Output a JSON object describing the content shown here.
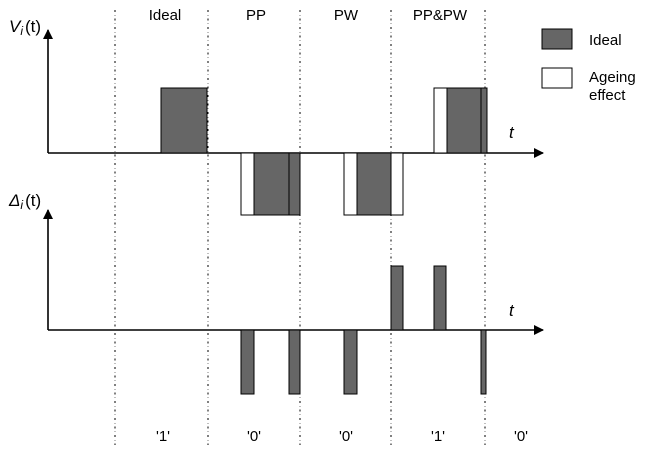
{
  "sections": [
    "Ideal",
    "PP",
    "PW",
    "PP&PW"
  ],
  "bits": [
    "'1'",
    "'0'",
    "'0'",
    "'1'",
    "'0'"
  ],
  "top_axis": {
    "symbol": "V",
    "subscript": "i",
    "arg": "(t)"
  },
  "bottom_axis": {
    "symbol": "Δ",
    "subscript": "i",
    "arg": "(t)"
  },
  "time_label": "t",
  "legend": {
    "ideal": {
      "label": "Ideal",
      "color": "#666666"
    },
    "ageing": {
      "label_line1": "Ageing",
      "label_line2": "effect",
      "color": "#ffffff"
    }
  },
  "colors": {
    "ideal_fill": "#666666",
    "stroke": "#000000",
    "ageing_fill": "#ffffff"
  }
}
